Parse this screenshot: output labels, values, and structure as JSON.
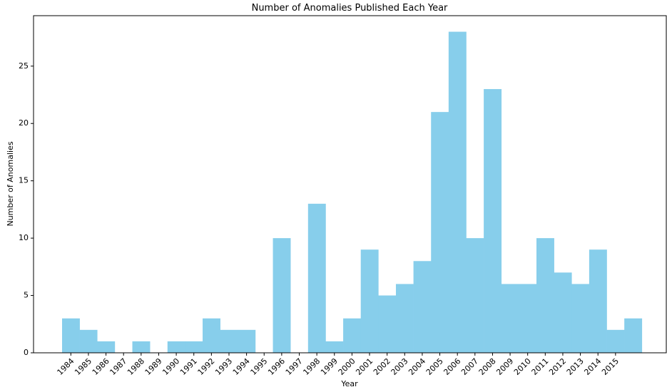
{
  "chart_data": {
    "type": "bar",
    "title": "Number of Anomalies Published Each Year",
    "x_label": "Year",
    "y_label": "Number of Anomalies",
    "categories": [
      "1984",
      "1985",
      "1986",
      "1987",
      "1988",
      "1989",
      "1990",
      "1991",
      "1992",
      "1993",
      "1994",
      "1995",
      "1996",
      "1997",
      "1998",
      "1999",
      "2000",
      "2001",
      "2002",
      "2003",
      "2004",
      "2005",
      "2006",
      "2007",
      "2008",
      "2009",
      "2010",
      "2011",
      "2012",
      "2013",
      "2014",
      "2015",
      null
    ],
    "values": [
      3,
      2,
      1,
      0,
      1,
      0,
      1,
      1,
      3,
      2,
      2,
      0,
      10,
      0,
      13,
      1,
      3,
      9,
      5,
      6,
      8,
      21,
      28,
      10,
      23,
      6,
      6,
      10,
      7,
      6,
      9,
      2,
      3
    ],
    "color": "#87ceeb",
    "ylim": [
      0,
      29.4
    ],
    "yticks": [
      0,
      5,
      10,
      15,
      20,
      25
    ],
    "grid": false
  }
}
